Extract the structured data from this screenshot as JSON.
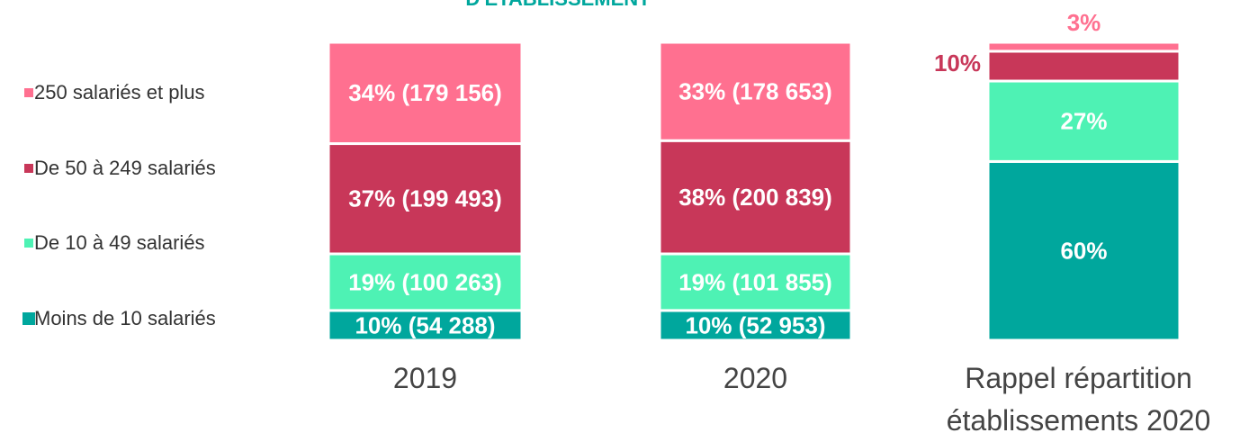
{
  "chart_data": {
    "type": "stacked_bar",
    "title": "D'ÉTABLISSEMENT",
    "categories": [
      "2019",
      "2020",
      "Rappel répartition établissements 2020"
    ],
    "ylim": [
      0,
      100
    ],
    "legend": "left",
    "series": [
      {
        "name": "Moins de 10 salariés",
        "color": "#00a79d",
        "values": [
          10,
          10,
          60
        ],
        "value_labels": [
          "10% (54 288)",
          "10% (52 953)",
          "60%"
        ]
      },
      {
        "name": "De 10 à 49 salariés",
        "color": "#4ef2b4",
        "values": [
          19,
          19,
          27
        ],
        "value_labels": [
          "19% (100 263)",
          "19% (101 855)",
          "27%"
        ]
      },
      {
        "name": "De 50 à 249 salariés",
        "color": "#c83759",
        "values": [
          37,
          38,
          10
        ],
        "value_labels": [
          "37% (199 493)",
          "38% (200 839)",
          "10%"
        ]
      },
      {
        "name": "250 salariés et plus",
        "color": "#ff7090",
        "values": [
          34,
          33,
          3
        ],
        "value_labels": [
          "34% (179 156)",
          "33% (178 653)",
          "3%"
        ]
      }
    ]
  }
}
